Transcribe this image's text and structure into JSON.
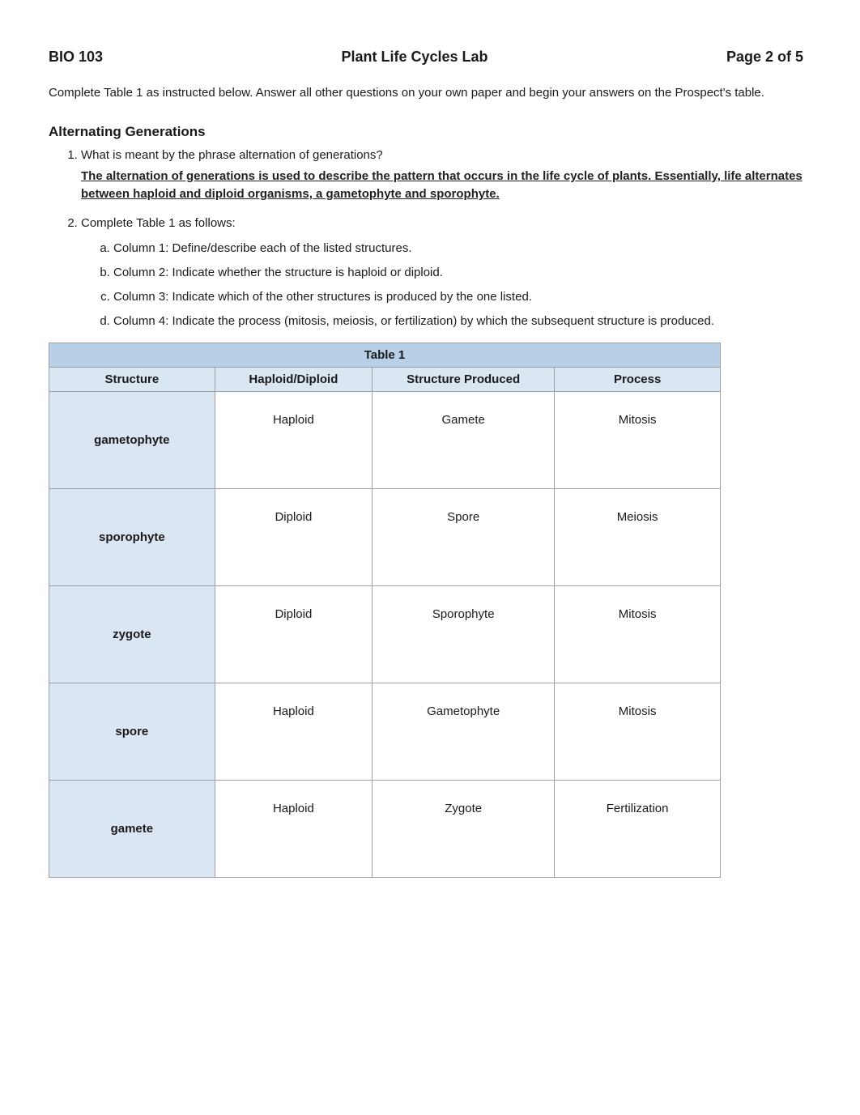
{
  "header": {
    "course": "BIO 103",
    "title": "Plant Life Cycles Lab",
    "page": "Page 2 of 5"
  },
  "instructions": "Complete Table 1 as instructed below. Answer all other questions on your own paper and begin your answers on the Prospect's table.",
  "section_heading": "Alternating Generations",
  "q1": {
    "prompt": "What is meant by the phrase alternation of generations?",
    "answer": "The alternation of generations is used to describe the pattern that occurs in the life cycle of plants. Essentially, life alternates between haploid and diploid organisms, a gametophyte and sporophyte."
  },
  "q2": {
    "prompt": "Complete Table 1 as follows:",
    "sub": [
      "Column 1: Define/describe each of the listed structures.",
      "Column 2: Indicate whether the structure is haploid or diploid.",
      "Column 3: Indicate which of the other structures is produced by the one listed.",
      "Column 4: Indicate the process (mitosis, meiosis, or fertilization) by which the subsequent structure is produced."
    ]
  },
  "table": {
    "title": "Table 1",
    "columns": [
      "Structure",
      "Haploid/Diploid",
      "Structure Produced",
      "Process"
    ],
    "col_classes": [
      "col-structure",
      "col-hd",
      "col-prod",
      "col-proc"
    ],
    "rows": [
      {
        "label": "gametophyte",
        "cells": [
          "Haploid",
          "Gamete",
          "Mitosis"
        ]
      },
      {
        "label": "sporophyte",
        "cells": [
          "Diploid",
          "Spore",
          "Meiosis"
        ]
      },
      {
        "label": "zygote",
        "cells": [
          "Diploid",
          "Sporophyte",
          "Mitosis"
        ]
      },
      {
        "label": "spore",
        "cells": [
          "Haploid",
          "Gametophyte",
          "Mitosis"
        ]
      },
      {
        "label": "gamete",
        "cells": [
          "Haploid",
          "Zygote",
          "Fertilization"
        ]
      }
    ]
  },
  "colors": {
    "title_row_bg": "#b8cfe8",
    "header_bg": "#dbe6f3",
    "border": "#9aa0a6",
    "text": "#1a1a1a"
  }
}
